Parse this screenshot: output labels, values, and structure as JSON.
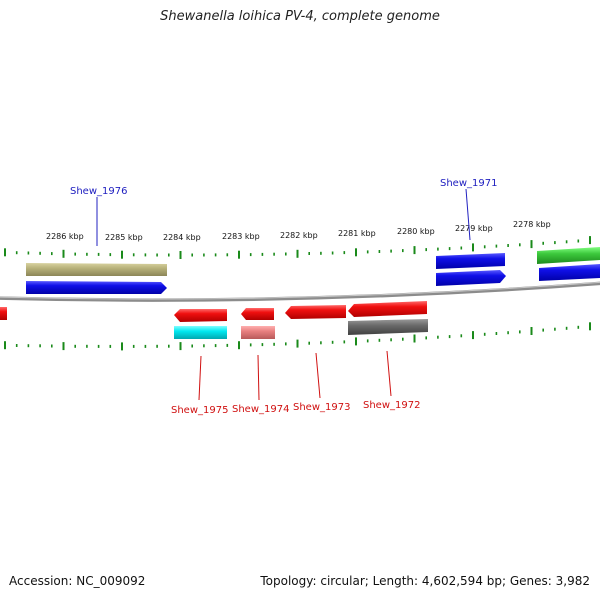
{
  "title": "Shewanella loihica PV-4, complete genome",
  "accession": "Accession: NC_009092",
  "topology": "Topology: circular; Length: 4,602,594 bp; Genes: 3,982",
  "colors": {
    "forward_cds": "#1010e8",
    "reverse_cds": "#f01010",
    "khaki_feature": "#b8b27a",
    "cyan_feature": "#00e8f0",
    "pink_feature": "#e88080",
    "gray_feature": "#6a6a6a",
    "green_feature": "#3cc83c",
    "tick": "#1a8a1a",
    "backbone": "#8c8c8c",
    "forward_label": "#2020c0",
    "reverse_label": "#d01010"
  },
  "scale_labels": [
    "2286 kbp",
    "2285 kbp",
    "2284 kbp",
    "2283 kbp",
    "2282 kbp",
    "2281 kbp",
    "2280 kbp",
    "2279 kbp",
    "2278 kbp"
  ],
  "gene_labels": {
    "forward": [
      "Shew_1976",
      "Shew_1971"
    ],
    "reverse": [
      "Shew_1975",
      "Shew_1974",
      "Shew_1973",
      "Shew_1972"
    ]
  }
}
